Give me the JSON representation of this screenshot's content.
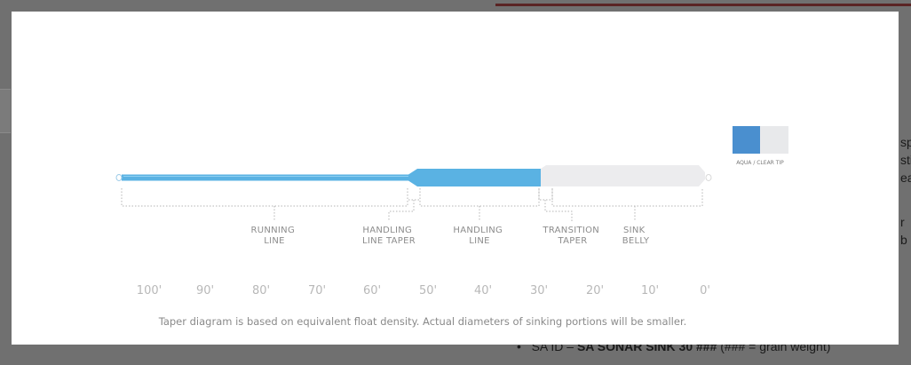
{
  "background": {
    "right_fragments": [
      "sp",
      "sti",
      "ea",
      "r b"
    ],
    "bullet": {
      "prefix": "SA ID – ",
      "bold": "SA SONAR SINK 30 ###",
      "suffix": " (### = grain weight)"
    }
  },
  "diagram": {
    "legend": {
      "label": "AQUA / CLEAR TIP",
      "swatch_colors": [
        "#4a8fcf",
        "#e8e9eb"
      ]
    },
    "colors": {
      "aqua": "#5ab2e3",
      "clear": "#ececee",
      "guide": "#b4b4b4",
      "text": "#8c8c8c"
    },
    "sections": [
      {
        "label_lines": [
          "RUNNING",
          "LINE"
        ]
      },
      {
        "label_lines": [
          "HANDLING",
          "LINE TAPER"
        ]
      },
      {
        "label_lines": [
          "HANDLING",
          "LINE"
        ]
      },
      {
        "label_lines": [
          "TRANSITION",
          "TAPER"
        ]
      },
      {
        "label_lines": [
          "SINK",
          "BELLY"
        ]
      }
    ],
    "scale_labels": [
      "100'",
      "90'",
      "80'",
      "70'",
      "60'",
      "50'",
      "40'",
      "30'",
      "20'",
      "10'",
      "0'"
    ],
    "caption": "Taper diagram is based on equivalent float density.  Actual diameters of sinking portions will be smaller."
  }
}
